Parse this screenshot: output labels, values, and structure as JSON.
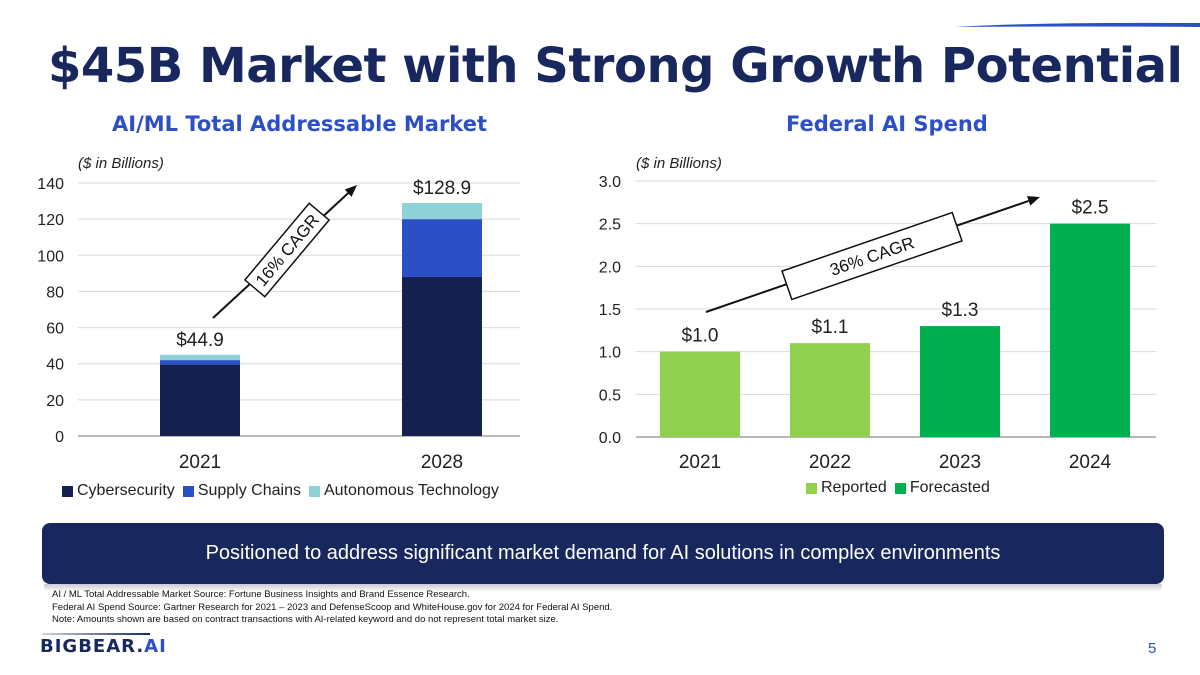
{
  "slide": {
    "title": "$45B Market with Strong Growth Potential",
    "banner": "Positioned to address significant market demand for AI solutions in complex environments",
    "footnotes": [
      "AI / ML Total Addressable Market Source: Fortune Business Insights and Brand Essence Research.",
      "Federal AI Spend Source: Gartner Research for 2021 – 2023 and DefenseScoop and WhiteHouse.gov for 2024 for Federal AI Spend.",
      "Note: Amounts shown are based on contract transactions with AI-related keyword and do not represent total market size."
    ],
    "logo_main": "BIGBEAR.",
    "logo_accent": "AI",
    "page_number": "5",
    "colors": {
      "navy": "#18285e",
      "blue": "#2d4fc6"
    }
  },
  "chart_data": [
    {
      "type": "bar",
      "stacked": true,
      "title": "AI/ML Total Addressable Market",
      "unit_note": "($ in Billions)",
      "categories": [
        "2021",
        "2028"
      ],
      "series": [
        {
          "name": "Cybersecurity",
          "color": "#16214f",
          "values": [
            39.5,
            88.0
          ]
        },
        {
          "name": "Supply Chains",
          "color": "#2d4fc6",
          "values": [
            2.5,
            32.0
          ]
        },
        {
          "name": "Autonomous Technology",
          "color": "#8ed2d8",
          "values": [
            2.9,
            8.9
          ]
        }
      ],
      "totals": [
        "$44.9",
        "$128.9"
      ],
      "annotation": "16% CAGR",
      "ylim": [
        0,
        140
      ],
      "yticks": [
        0,
        20,
        40,
        60,
        80,
        100,
        120,
        140
      ],
      "grid": true,
      "legend": "bottom"
    },
    {
      "type": "bar",
      "title": "Federal AI Spend",
      "unit_note": "($ in Billions)",
      "categories": [
        "2021",
        "2022",
        "2023",
        "2024"
      ],
      "values": [
        1.0,
        1.1,
        1.3,
        2.5
      ],
      "data_labels": [
        "$1.0",
        "$1.1",
        "$1.3",
        "$2.5"
      ],
      "bar_status": [
        "Reported",
        "Reported",
        "Forecasted",
        "Forecasted"
      ],
      "legend_entries": [
        {
          "name": "Reported",
          "color": "#92d050"
        },
        {
          "name": "Forecasted",
          "color": "#00b050"
        }
      ],
      "annotation": "36% CAGR",
      "ylim": [
        0,
        3.0
      ],
      "yticks": [
        "0.0",
        "0.5",
        "1.0",
        "1.5",
        "2.0",
        "2.5",
        "3.0"
      ],
      "grid": true,
      "legend": "bottom"
    }
  ]
}
